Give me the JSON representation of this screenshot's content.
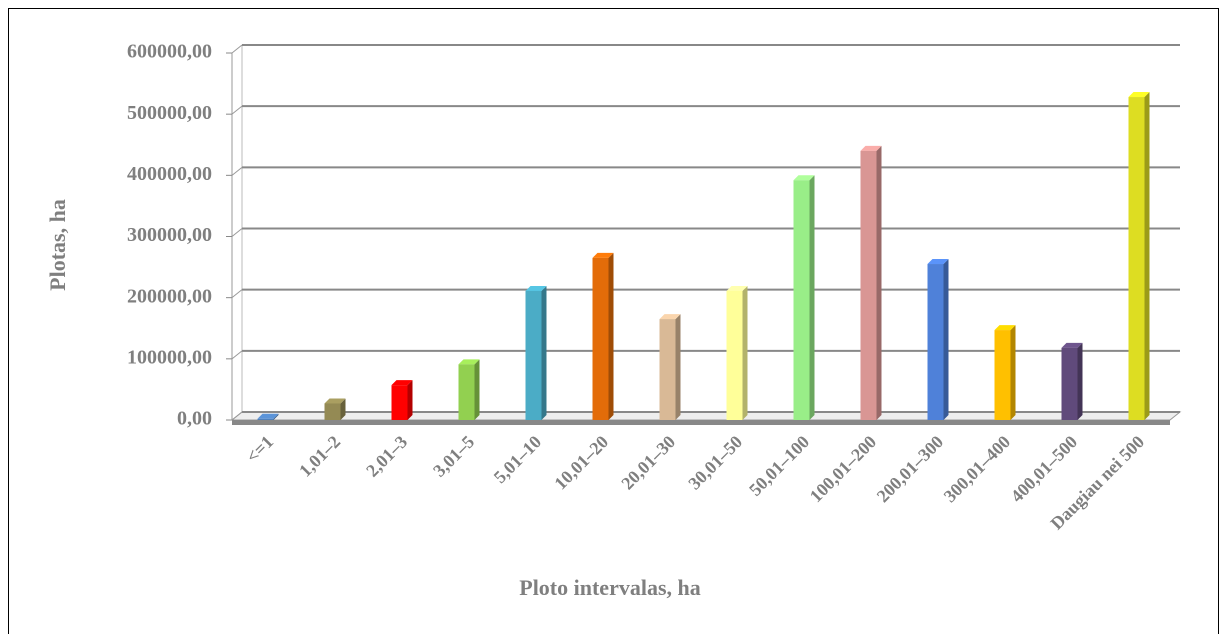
{
  "chart_data": {
    "type": "bar",
    "x_label": "Ploto intervalas, ha",
    "y_label": "Plotas, ha",
    "categories": [
      "<=1",
      "1,01–2",
      "2,01–3",
      "3,01–5",
      "5,01–10",
      "10,01–20",
      "20,01–30",
      "30,01–50",
      "50,01–100",
      "100,01–200",
      "200,01–300",
      "300,01–400",
      "400,01–500",
      "Daugiau nei 500"
    ],
    "values": [
      2000,
      27000,
      57000,
      91000,
      211000,
      265000,
      165000,
      211000,
      392000,
      440000,
      255000,
      147000,
      118000,
      528000
    ],
    "colors": [
      "#4f81bd",
      "#948a54",
      "#ff0000",
      "#92d050",
      "#4bacc6",
      "#e36c09",
      "#d9b996",
      "#ffff99",
      "#99ee88",
      "#d99694",
      "#4f81d9",
      "#ffc000",
      "#604a7b",
      "#dddd22"
    ],
    "ylim": [
      0,
      600000
    ],
    "yticks": [
      {
        "value": 0,
        "label": "0,00"
      },
      {
        "value": 100000,
        "label": "100000,00"
      },
      {
        "value": 200000,
        "label": "200000,00"
      },
      {
        "value": 300000,
        "label": "300000,00"
      },
      {
        "value": 400000,
        "label": "400000,00"
      },
      {
        "value": 500000,
        "label": "500000,00"
      },
      {
        "value": 600000,
        "label": "600000,00"
      }
    ],
    "grid": true
  }
}
